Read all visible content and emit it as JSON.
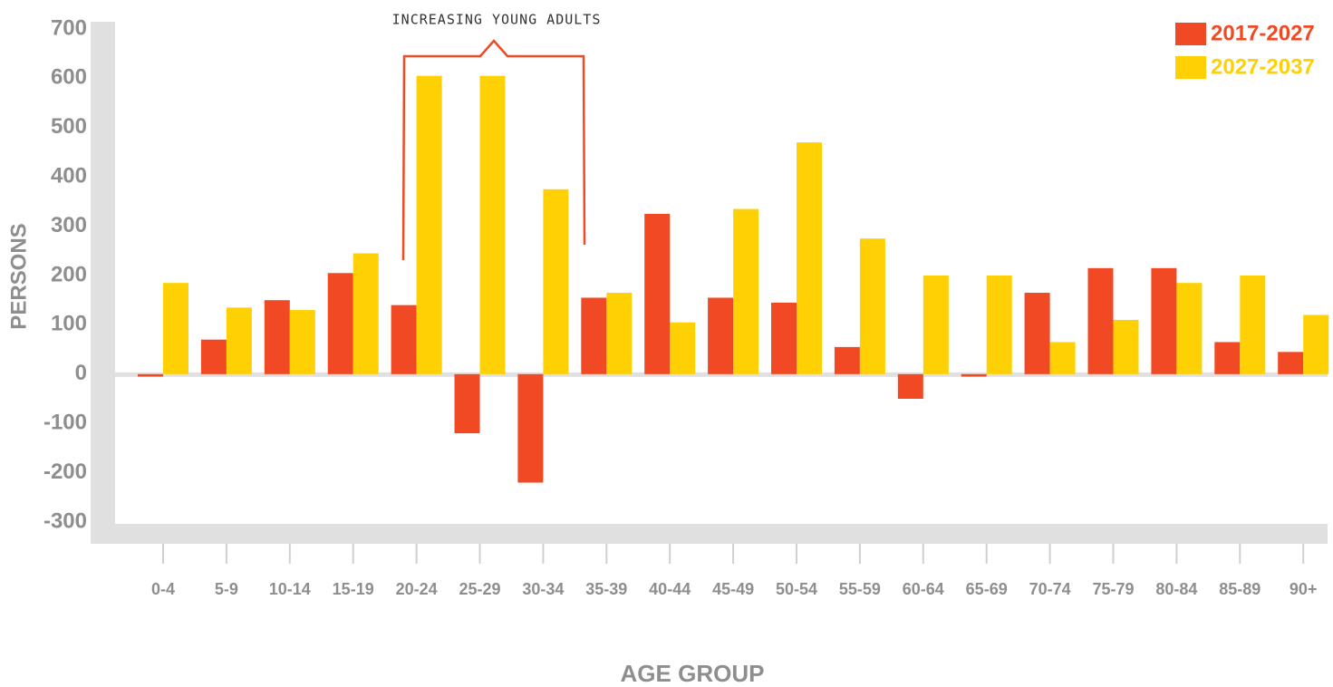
{
  "chart_data": {
    "type": "bar",
    "annotation": "INCREASING YOUNG ADULTS",
    "y_label": "PERSONS",
    "x_label": "AGE GROUP",
    "categories": [
      "0-4",
      "5-9",
      "10-14",
      "15-19",
      "20-24",
      "25-29",
      "30-34",
      "35-39",
      "40-44",
      "45-49",
      "50-54",
      "55-59",
      "60-64",
      "65-69",
      "70-74",
      "75-79",
      "80-84",
      "85-89",
      "90+"
    ],
    "series": [
      {
        "name": "2017-2027",
        "color": "#f04923",
        "values": [
          -5,
          70,
          150,
          205,
          140,
          -120,
          -220,
          155,
          325,
          155,
          145,
          55,
          -50,
          -5,
          165,
          215,
          215,
          65,
          45
        ]
      },
      {
        "name": "2027-2037",
        "color": "#ffd105",
        "values": [
          185,
          135,
          130,
          245,
          605,
          605,
          375,
          165,
          105,
          335,
          470,
          275,
          200,
          200,
          65,
          110,
          185,
          200,
          120
        ]
      }
    ],
    "ylim": [
      -300,
      700
    ],
    "yticks": [
      -300,
      -200,
      -100,
      0,
      100,
      200,
      300,
      400,
      500,
      600,
      700
    ],
    "legend": "top-right"
  }
}
